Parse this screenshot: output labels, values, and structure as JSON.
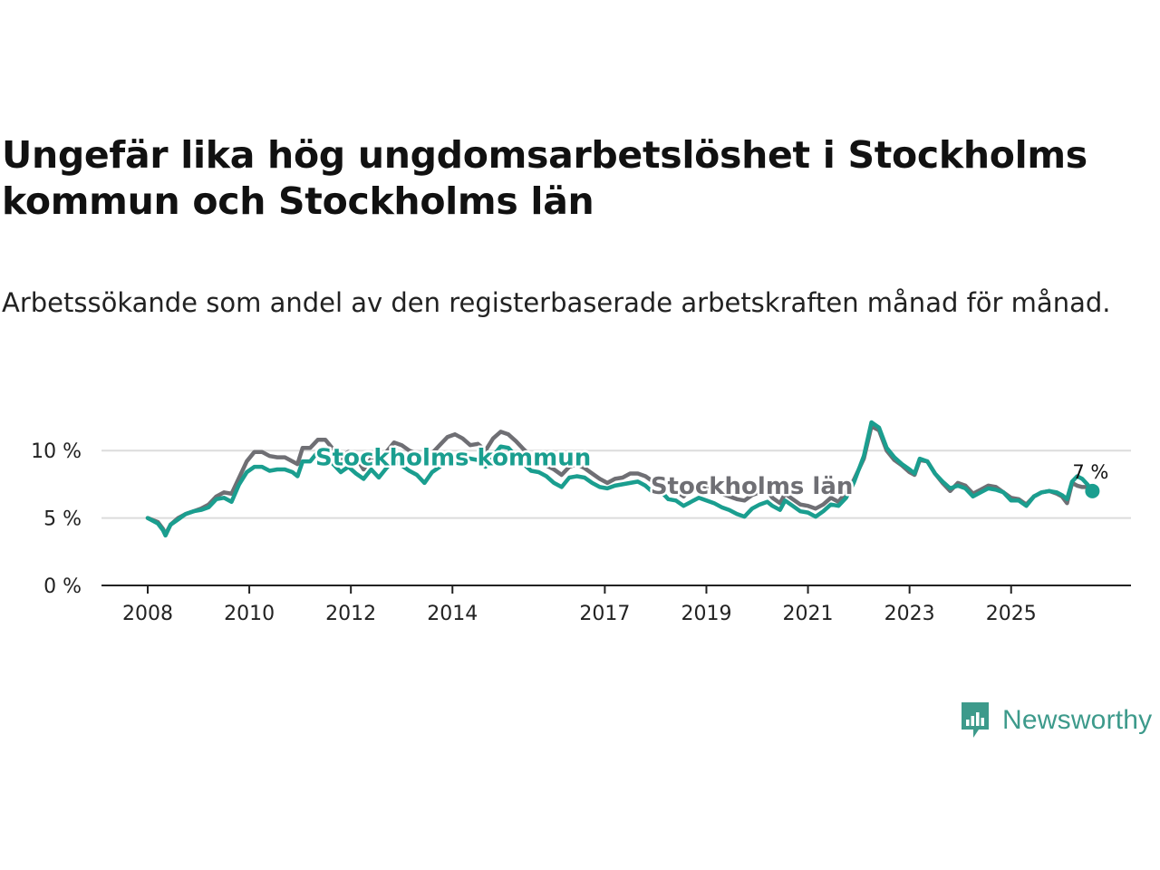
{
  "title": "Ungefär lika hög ungdomsarbetslöshet i Stockholms kommun och Stockholms län",
  "subtitle": "Arbetssökande som andel av den registerbaserade arbetskraften månad för månad.",
  "brand": {
    "name": "Newsworthy",
    "icon": "newsworthy-logo-icon",
    "color": "#3d9a8b"
  },
  "chart_data": {
    "type": "line",
    "title": "Ungefär lika hög ungdomsarbetslöshet i Stockholms kommun och Stockholms län",
    "xlabel": "",
    "ylabel": "",
    "ylim": [
      0,
      12.5
    ],
    "xlim": [
      2008.0,
      2026.7
    ],
    "yticks": [
      0,
      5,
      10
    ],
    "ytick_labels": [
      "0 %",
      "5 %",
      "10 %"
    ],
    "xticks": [
      2008,
      2010,
      2012,
      2014,
      2017,
      2019,
      2021,
      2023,
      2025
    ],
    "xtick_labels": [
      "2008",
      "2010",
      "2012",
      "2014",
      "2017",
      "2019",
      "2021",
      "2023",
      "2025"
    ],
    "grid": true,
    "end_label": "7 %",
    "series": [
      {
        "name": "Stockholms län",
        "color": "#6f6f74",
        "label_pos": [
          2017.9,
          6.8
        ],
        "points": [
          [
            2008.0,
            5.0
          ],
          [
            2008.2,
            4.7
          ],
          [
            2008.3,
            4.2
          ],
          [
            2008.35,
            3.8
          ],
          [
            2008.45,
            4.5
          ],
          [
            2008.6,
            5.0
          ],
          [
            2008.75,
            5.3
          ],
          [
            2008.9,
            5.5
          ],
          [
            2009.05,
            5.7
          ],
          [
            2009.2,
            6.0
          ],
          [
            2009.35,
            6.6
          ],
          [
            2009.5,
            6.9
          ],
          [
            2009.65,
            6.8
          ],
          [
            2009.8,
            8.0
          ],
          [
            2009.95,
            9.2
          ],
          [
            2010.1,
            9.9
          ],
          [
            2010.25,
            9.9
          ],
          [
            2010.4,
            9.6
          ],
          [
            2010.55,
            9.5
          ],
          [
            2010.7,
            9.5
          ],
          [
            2010.85,
            9.2
          ],
          [
            2010.95,
            9.0
          ],
          [
            2011.05,
            10.2
          ],
          [
            2011.2,
            10.2
          ],
          [
            2011.35,
            10.8
          ],
          [
            2011.5,
            10.8
          ],
          [
            2011.65,
            10.1
          ],
          [
            2011.8,
            9.4
          ],
          [
            2011.95,
            9.9
          ],
          [
            2012.1,
            9.5
          ],
          [
            2012.25,
            8.6
          ],
          [
            2012.4,
            9.4
          ],
          [
            2012.55,
            9.0
          ],
          [
            2012.7,
            9.9
          ],
          [
            2012.85,
            10.6
          ],
          [
            2013.0,
            10.4
          ],
          [
            2013.15,
            10.0
          ],
          [
            2013.3,
            9.8
          ],
          [
            2013.45,
            9.2
          ],
          [
            2013.6,
            9.8
          ],
          [
            2013.75,
            10.4
          ],
          [
            2013.9,
            11.0
          ],
          [
            2014.05,
            11.2
          ],
          [
            2014.2,
            10.9
          ],
          [
            2014.35,
            10.4
          ],
          [
            2014.5,
            10.5
          ],
          [
            2014.65,
            10.0
          ],
          [
            2014.8,
            10.9
          ],
          [
            2014.95,
            11.4
          ],
          [
            2015.1,
            11.2
          ],
          [
            2015.25,
            10.7
          ],
          [
            2015.4,
            10.1
          ],
          [
            2015.55,
            9.6
          ],
          [
            2015.7,
            9.3
          ],
          [
            2015.85,
            8.9
          ],
          [
            2016.0,
            8.6
          ],
          [
            2016.15,
            8.2
          ],
          [
            2016.3,
            8.8
          ],
          [
            2016.45,
            9.0
          ],
          [
            2016.6,
            8.7
          ],
          [
            2016.75,
            8.3
          ],
          [
            2016.9,
            7.9
          ],
          [
            2017.05,
            7.6
          ],
          [
            2017.2,
            7.9
          ],
          [
            2017.35,
            8.0
          ],
          [
            2017.5,
            8.3
          ],
          [
            2017.65,
            8.3
          ],
          [
            2017.8,
            8.1
          ],
          [
            2017.95,
            7.7
          ],
          [
            2018.1,
            7.8
          ],
          [
            2018.25,
            7.2
          ],
          [
            2018.4,
            7.0
          ],
          [
            2018.55,
            6.6
          ],
          [
            2018.7,
            7.2
          ],
          [
            2018.85,
            7.5
          ],
          [
            2019.0,
            7.3
          ],
          [
            2019.15,
            7.0
          ],
          [
            2019.3,
            6.8
          ],
          [
            2019.45,
            6.6
          ],
          [
            2019.6,
            6.4
          ],
          [
            2019.75,
            6.3
          ],
          [
            2019.9,
            6.7
          ],
          [
            2020.05,
            6.9
          ],
          [
            2020.2,
            7.0
          ],
          [
            2020.3,
            6.5
          ],
          [
            2020.45,
            6.1
          ],
          [
            2020.55,
            6.8
          ],
          [
            2020.7,
            6.4
          ],
          [
            2020.85,
            6.0
          ],
          [
            2021.0,
            5.9
          ],
          [
            2021.15,
            5.7
          ],
          [
            2021.3,
            6.0
          ],
          [
            2021.45,
            6.5
          ],
          [
            2021.6,
            6.2
          ],
          [
            2021.75,
            6.9
          ],
          [
            2021.9,
            7.8
          ],
          [
            2022.1,
            9.4
          ],
          [
            2022.25,
            11.8
          ],
          [
            2022.4,
            11.5
          ],
          [
            2022.55,
            10.0
          ],
          [
            2022.7,
            9.3
          ],
          [
            2022.85,
            8.9
          ],
          [
            2023.0,
            8.4
          ],
          [
            2023.1,
            8.2
          ],
          [
            2023.2,
            9.3
          ],
          [
            2023.35,
            9.2
          ],
          [
            2023.5,
            8.3
          ],
          [
            2023.65,
            7.6
          ],
          [
            2023.8,
            7.0
          ],
          [
            2023.95,
            7.6
          ],
          [
            2024.1,
            7.4
          ],
          [
            2024.25,
            6.8
          ],
          [
            2024.4,
            7.1
          ],
          [
            2024.55,
            7.4
          ],
          [
            2024.7,
            7.3
          ],
          [
            2024.85,
            6.9
          ],
          [
            2025.0,
            6.5
          ],
          [
            2025.15,
            6.4
          ],
          [
            2025.3,
            6.0
          ],
          [
            2025.45,
            6.6
          ],
          [
            2025.6,
            6.9
          ],
          [
            2025.75,
            7.0
          ],
          [
            2025.9,
            6.8
          ],
          [
            2026.0,
            6.6
          ],
          [
            2026.1,
            6.1
          ],
          [
            2026.2,
            7.6
          ],
          [
            2026.3,
            7.4
          ],
          [
            2026.4,
            7.3
          ],
          [
            2026.5,
            7.3
          ],
          [
            2026.6,
            7.0
          ]
        ]
      },
      {
        "name": "Stockholms kommun",
        "color": "#1a9e8f",
        "label_pos": [
          2011.3,
          8.9
        ],
        "points": [
          [
            2008.0,
            5.0
          ],
          [
            2008.2,
            4.6
          ],
          [
            2008.3,
            4.1
          ],
          [
            2008.35,
            3.7
          ],
          [
            2008.45,
            4.5
          ],
          [
            2008.6,
            4.9
          ],
          [
            2008.75,
            5.3
          ],
          [
            2008.9,
            5.5
          ],
          [
            2009.05,
            5.6
          ],
          [
            2009.2,
            5.8
          ],
          [
            2009.35,
            6.4
          ],
          [
            2009.5,
            6.5
          ],
          [
            2009.65,
            6.2
          ],
          [
            2009.8,
            7.5
          ],
          [
            2009.95,
            8.4
          ],
          [
            2010.1,
            8.8
          ],
          [
            2010.25,
            8.8
          ],
          [
            2010.4,
            8.5
          ],
          [
            2010.55,
            8.6
          ],
          [
            2010.7,
            8.6
          ],
          [
            2010.85,
            8.4
          ],
          [
            2010.95,
            8.1
          ],
          [
            2011.05,
            9.2
          ],
          [
            2011.2,
            9.2
          ],
          [
            2011.35,
            9.9
          ],
          [
            2011.5,
            9.6
          ],
          [
            2011.65,
            9.0
          ],
          [
            2011.8,
            8.4
          ],
          [
            2011.95,
            8.8
          ],
          [
            2012.1,
            8.3
          ],
          [
            2012.25,
            7.9
          ],
          [
            2012.4,
            8.6
          ],
          [
            2012.55,
            8.0
          ],
          [
            2012.7,
            8.7
          ],
          [
            2012.85,
            9.3
          ],
          [
            2013.0,
            8.9
          ],
          [
            2013.15,
            8.5
          ],
          [
            2013.3,
            8.2
          ],
          [
            2013.45,
            7.6
          ],
          [
            2013.6,
            8.4
          ],
          [
            2013.75,
            8.8
          ],
          [
            2013.9,
            9.3
          ],
          [
            2014.05,
            9.6
          ],
          [
            2014.2,
            9.6
          ],
          [
            2014.35,
            9.4
          ],
          [
            2014.5,
            9.3
          ],
          [
            2014.65,
            8.8
          ],
          [
            2014.8,
            9.6
          ],
          [
            2014.95,
            10.3
          ],
          [
            2015.1,
            10.2
          ],
          [
            2015.25,
            9.6
          ],
          [
            2015.4,
            9.0
          ],
          [
            2015.55,
            8.5
          ],
          [
            2015.7,
            8.4
          ],
          [
            2015.85,
            8.1
          ],
          [
            2016.0,
            7.6
          ],
          [
            2016.15,
            7.3
          ],
          [
            2016.3,
            8.0
          ],
          [
            2016.45,
            8.1
          ],
          [
            2016.6,
            8.0
          ],
          [
            2016.75,
            7.6
          ],
          [
            2016.9,
            7.3
          ],
          [
            2017.05,
            7.2
          ],
          [
            2017.2,
            7.4
          ],
          [
            2017.35,
            7.5
          ],
          [
            2017.5,
            7.6
          ],
          [
            2017.65,
            7.7
          ],
          [
            2017.8,
            7.4
          ],
          [
            2017.95,
            6.9
          ],
          [
            2018.1,
            7.0
          ],
          [
            2018.25,
            6.4
          ],
          [
            2018.4,
            6.3
          ],
          [
            2018.55,
            5.9
          ],
          [
            2018.7,
            6.2
          ],
          [
            2018.85,
            6.5
          ],
          [
            2019.0,
            6.3
          ],
          [
            2019.15,
            6.1
          ],
          [
            2019.3,
            5.8
          ],
          [
            2019.45,
            5.6
          ],
          [
            2019.6,
            5.3
          ],
          [
            2019.75,
            5.1
          ],
          [
            2019.9,
            5.7
          ],
          [
            2020.05,
            6.0
          ],
          [
            2020.2,
            6.2
          ],
          [
            2020.3,
            5.9
          ],
          [
            2020.45,
            5.6
          ],
          [
            2020.55,
            6.3
          ],
          [
            2020.7,
            5.9
          ],
          [
            2020.85,
            5.5
          ],
          [
            2021.0,
            5.4
          ],
          [
            2021.15,
            5.1
          ],
          [
            2021.3,
            5.5
          ],
          [
            2021.45,
            6.0
          ],
          [
            2021.6,
            5.9
          ],
          [
            2021.75,
            6.5
          ],
          [
            2021.9,
            7.6
          ],
          [
            2022.1,
            9.6
          ],
          [
            2022.25,
            12.1
          ],
          [
            2022.4,
            11.7
          ],
          [
            2022.55,
            10.2
          ],
          [
            2022.7,
            9.5
          ],
          [
            2022.85,
            9.0
          ],
          [
            2023.0,
            8.6
          ],
          [
            2023.1,
            8.3
          ],
          [
            2023.2,
            9.4
          ],
          [
            2023.35,
            9.2
          ],
          [
            2023.5,
            8.3
          ],
          [
            2023.65,
            7.7
          ],
          [
            2023.8,
            7.2
          ],
          [
            2023.95,
            7.4
          ],
          [
            2024.1,
            7.2
          ],
          [
            2024.25,
            6.6
          ],
          [
            2024.4,
            6.9
          ],
          [
            2024.55,
            7.2
          ],
          [
            2024.7,
            7.1
          ],
          [
            2024.85,
            6.9
          ],
          [
            2025.0,
            6.3
          ],
          [
            2025.15,
            6.3
          ],
          [
            2025.3,
            5.9
          ],
          [
            2025.45,
            6.6
          ],
          [
            2025.6,
            6.9
          ],
          [
            2025.75,
            7.0
          ],
          [
            2025.9,
            6.9
          ],
          [
            2026.0,
            6.7
          ],
          [
            2026.1,
            6.4
          ],
          [
            2026.2,
            7.7
          ],
          [
            2026.3,
            8.1
          ],
          [
            2026.4,
            7.9
          ],
          [
            2026.5,
            7.5
          ],
          [
            2026.6,
            7.0
          ]
        ]
      }
    ]
  }
}
